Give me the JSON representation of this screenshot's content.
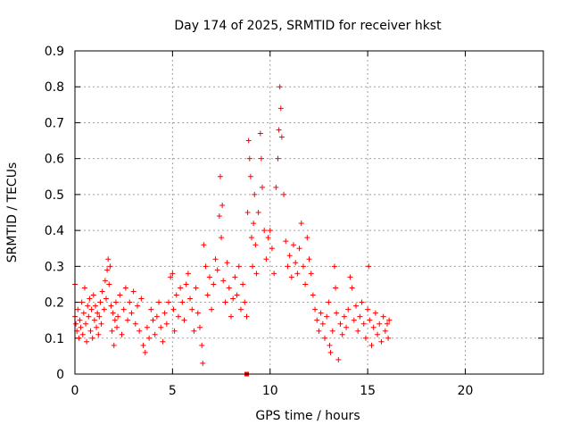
{
  "chart_data": {
    "type": "scatter",
    "title": "Day 174 of 2025, SRMTID for receiver hkst",
    "xlabel": "GPS time / hours",
    "ylabel": "SRMTID / TECUs",
    "xlim": [
      0,
      24
    ],
    "ylim": [
      0,
      0.9
    ],
    "x_ticks": [
      "0",
      "5",
      "10",
      "15",
      "20"
    ],
    "x_tick_values": [
      0,
      5,
      10,
      15,
      20
    ],
    "y_ticks": [
      "0",
      "0.1",
      "0.2",
      "0.3",
      "0.4",
      "0.5",
      "0.6",
      "0.7",
      "0.8",
      "0.9"
    ],
    "y_tick_values": [
      0,
      0.1,
      0.2,
      0.3,
      0.4,
      0.5,
      0.6,
      0.7,
      0.8,
      0.9
    ],
    "grid": true,
    "marker": "plus",
    "color": "#ff0000",
    "series": [
      {
        "name": "SRMTID",
        "points": [
          [
            0.0,
            0.25
          ],
          [
            0.0,
            0.16
          ],
          [
            0.05,
            0.14
          ],
          [
            0.1,
            0.12
          ],
          [
            0.15,
            0.18
          ],
          [
            0.2,
            0.1
          ],
          [
            0.25,
            0.15
          ],
          [
            0.3,
            0.13
          ],
          [
            0.35,
            0.2
          ],
          [
            0.4,
            0.11
          ],
          [
            0.45,
            0.17
          ],
          [
            0.5,
            0.24
          ],
          [
            0.55,
            0.14
          ],
          [
            0.6,
            0.09
          ],
          [
            0.65,
            0.19
          ],
          [
            0.7,
            0.16
          ],
          [
            0.75,
            0.21
          ],
          [
            0.8,
            0.12
          ],
          [
            0.85,
            0.18
          ],
          [
            0.9,
            0.1
          ],
          [
            0.95,
            0.22
          ],
          [
            1.0,
            0.15
          ],
          [
            1.05,
            0.19
          ],
          [
            1.1,
            0.13
          ],
          [
            1.15,
            0.17
          ],
          [
            1.2,
            0.11
          ],
          [
            1.25,
            0.16
          ],
          [
            1.3,
            0.2
          ],
          [
            1.35,
            0.14
          ],
          [
            1.4,
            0.23
          ],
          [
            1.5,
            0.18
          ],
          [
            1.55,
            0.26
          ],
          [
            1.6,
            0.21
          ],
          [
            1.65,
            0.29
          ],
          [
            1.7,
            0.32
          ],
          [
            1.75,
            0.25
          ],
          [
            1.8,
            0.3
          ],
          [
            1.85,
            0.19
          ],
          [
            1.9,
            0.12
          ],
          [
            1.95,
            0.17
          ],
          [
            2.0,
            0.08
          ],
          [
            2.05,
            0.15
          ],
          [
            2.1,
            0.2
          ],
          [
            2.15,
            0.13
          ],
          [
            2.2,
            0.16
          ],
          [
            2.3,
            0.22
          ],
          [
            2.4,
            0.11
          ],
          [
            2.5,
            0.18
          ],
          [
            2.6,
            0.24
          ],
          [
            2.7,
            0.15
          ],
          [
            2.8,
            0.2
          ],
          [
            2.9,
            0.17
          ],
          [
            3.0,
            0.23
          ],
          [
            3.1,
            0.14
          ],
          [
            3.2,
            0.19
          ],
          [
            3.3,
            0.12
          ],
          [
            3.4,
            0.21
          ],
          [
            3.5,
            0.08
          ],
          [
            3.6,
            0.06
          ],
          [
            3.7,
            0.13
          ],
          [
            3.8,
            0.1
          ],
          [
            3.9,
            0.18
          ],
          [
            4.0,
            0.15
          ],
          [
            4.1,
            0.11
          ],
          [
            4.2,
            0.16
          ],
          [
            4.3,
            0.2
          ],
          [
            4.4,
            0.13
          ],
          [
            4.5,
            0.09
          ],
          [
            4.6,
            0.17
          ],
          [
            4.7,
            0.14
          ],
          [
            4.8,
            0.2
          ],
          [
            4.9,
            0.27
          ],
          [
            5.0,
            0.28
          ],
          [
            5.05,
            0.18
          ],
          [
            5.1,
            0.12
          ],
          [
            5.2,
            0.22
          ],
          [
            5.3,
            0.16
          ],
          [
            5.4,
            0.24
          ],
          [
            5.5,
            0.2
          ],
          [
            5.6,
            0.15
          ],
          [
            5.7,
            0.25
          ],
          [
            5.8,
            0.28
          ],
          [
            5.9,
            0.21
          ],
          [
            6.0,
            0.18
          ],
          [
            6.1,
            0.12
          ],
          [
            6.2,
            0.24
          ],
          [
            6.3,
            0.17
          ],
          [
            6.4,
            0.13
          ],
          [
            6.5,
            0.08
          ],
          [
            6.55,
            0.03
          ],
          [
            6.6,
            0.36
          ],
          [
            6.7,
            0.3
          ],
          [
            6.8,
            0.22
          ],
          [
            6.9,
            0.27
          ],
          [
            7.0,
            0.18
          ],
          [
            7.1,
            0.25
          ],
          [
            7.2,
            0.32
          ],
          [
            7.3,
            0.29
          ],
          [
            7.4,
            0.44
          ],
          [
            7.45,
            0.55
          ],
          [
            7.5,
            0.38
          ],
          [
            7.55,
            0.47
          ],
          [
            7.6,
            0.26
          ],
          [
            7.7,
            0.2
          ],
          [
            7.8,
            0.31
          ],
          [
            7.9,
            0.24
          ],
          [
            8.0,
            0.16
          ],
          [
            8.1,
            0.21
          ],
          [
            8.2,
            0.27
          ],
          [
            8.3,
            0.22
          ],
          [
            8.4,
            0.3
          ],
          [
            8.5,
            0.18
          ],
          [
            8.6,
            0.25
          ],
          [
            8.7,
            0.2
          ],
          [
            8.8,
            0.16
          ],
          [
            8.85,
            0.45
          ],
          [
            8.9,
            0.65
          ],
          [
            8.95,
            0.6
          ],
          [
            9.0,
            0.55
          ],
          [
            9.05,
            0.38
          ],
          [
            9.1,
            0.3
          ],
          [
            9.15,
            0.42
          ],
          [
            9.2,
            0.5
          ],
          [
            9.25,
            0.36
          ],
          [
            9.3,
            0.28
          ],
          [
            9.4,
            0.45
          ],
          [
            9.5,
            0.67
          ],
          [
            9.55,
            0.6
          ],
          [
            9.6,
            0.52
          ],
          [
            9.7,
            0.4
          ],
          [
            9.8,
            0.32
          ],
          [
            9.9,
            0.38
          ],
          [
            10.0,
            0.4
          ],
          [
            10.1,
            0.35
          ],
          [
            10.2,
            0.28
          ],
          [
            10.3,
            0.52
          ],
          [
            10.4,
            0.6
          ],
          [
            10.45,
            0.68
          ],
          [
            10.5,
            0.8
          ],
          [
            10.55,
            0.74
          ],
          [
            10.6,
            0.66
          ],
          [
            10.7,
            0.5
          ],
          [
            10.8,
            0.37
          ],
          [
            10.9,
            0.3
          ],
          [
            11.0,
            0.33
          ],
          [
            11.1,
            0.27
          ],
          [
            11.2,
            0.36
          ],
          [
            11.3,
            0.31
          ],
          [
            11.4,
            0.28
          ],
          [
            11.5,
            0.35
          ],
          [
            11.6,
            0.42
          ],
          [
            11.7,
            0.3
          ],
          [
            11.8,
            0.25
          ],
          [
            11.9,
            0.38
          ],
          [
            12.0,
            0.32
          ],
          [
            12.1,
            0.28
          ],
          [
            12.2,
            0.22
          ],
          [
            12.3,
            0.18
          ],
          [
            12.4,
            0.15
          ],
          [
            12.5,
            0.12
          ],
          [
            12.6,
            0.17
          ],
          [
            12.7,
            0.14
          ],
          [
            12.8,
            0.1
          ],
          [
            12.9,
            0.16
          ],
          [
            13.0,
            0.2
          ],
          [
            13.05,
            0.08
          ],
          [
            13.1,
            0.06
          ],
          [
            13.2,
            0.12
          ],
          [
            13.3,
            0.3
          ],
          [
            13.35,
            0.24
          ],
          [
            13.4,
            0.17
          ],
          [
            13.5,
            0.04
          ],
          [
            13.6,
            0.14
          ],
          [
            13.7,
            0.11
          ],
          [
            13.8,
            0.16
          ],
          [
            13.9,
            0.13
          ],
          [
            14.0,
            0.18
          ],
          [
            14.1,
            0.27
          ],
          [
            14.2,
            0.24
          ],
          [
            14.3,
            0.15
          ],
          [
            14.4,
            0.19
          ],
          [
            14.5,
            0.12
          ],
          [
            14.6,
            0.16
          ],
          [
            14.7,
            0.2
          ],
          [
            14.8,
            0.14
          ],
          [
            14.9,
            0.1
          ],
          [
            15.0,
            0.18
          ],
          [
            15.05,
            0.3
          ],
          [
            15.1,
            0.15
          ],
          [
            15.2,
            0.08
          ],
          [
            15.3,
            0.13
          ],
          [
            15.4,
            0.17
          ],
          [
            15.5,
            0.11
          ],
          [
            15.6,
            0.14
          ],
          [
            15.7,
            0.09
          ],
          [
            15.8,
            0.16
          ],
          [
            15.9,
            0.12
          ],
          [
            16.0,
            0.14
          ],
          [
            16.05,
            0.1
          ],
          [
            16.1,
            0.15
          ]
        ]
      }
    ],
    "special_point": {
      "x": 8.8,
      "y": 0.0,
      "marker": "square"
    }
  }
}
